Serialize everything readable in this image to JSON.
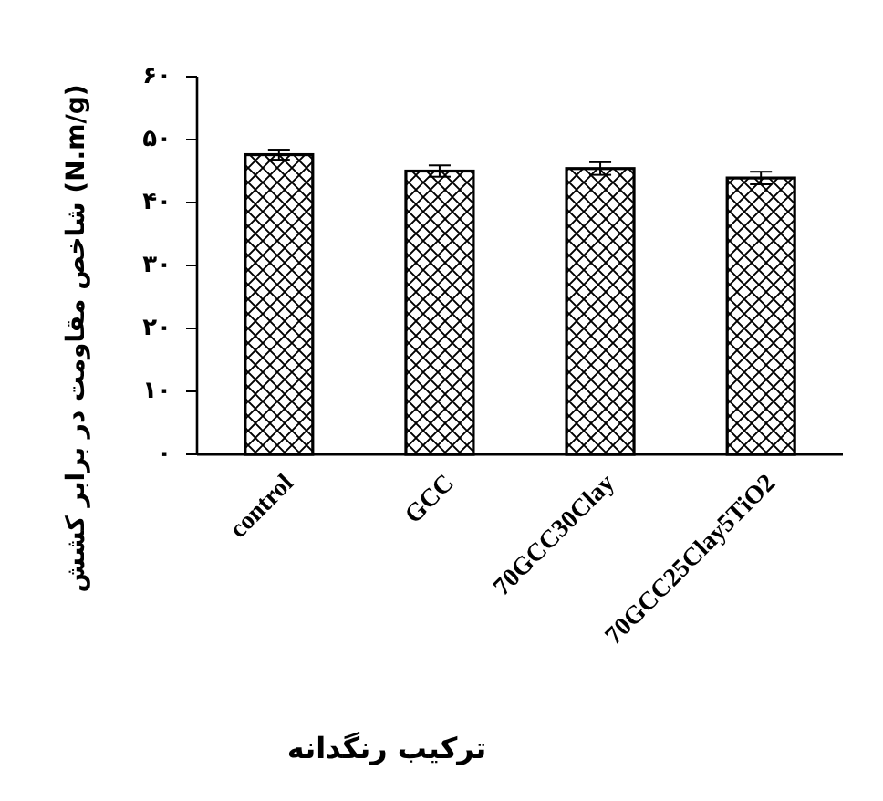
{
  "chart_data": {
    "type": "bar",
    "xlabel": "ترکیب رنگدانه",
    "ylabel": "شاخص مقاومت در برابر کشش (N.m/g)",
    "categories": [
      "control",
      "GCC",
      "70GCC30Clay",
      "70GCC25Clay5TiO2"
    ],
    "values": [
      47.6,
      45.0,
      45.4,
      43.9
    ],
    "errors": [
      0.8,
      0.9,
      1.0,
      1.0
    ],
    "color": "#000000",
    "ylim": [
      0,
      60
    ],
    "yticks": [
      {
        "value": 0,
        "label": "۰"
      },
      {
        "value": 10,
        "label": "۱۰"
      },
      {
        "value": 20,
        "label": "۲۰"
      },
      {
        "value": 30,
        "label": "۳۰"
      },
      {
        "value": 40,
        "label": "۴۰"
      },
      {
        "value": 50,
        "label": "۵۰"
      },
      {
        "value": 60,
        "label": "۶۰"
      }
    ],
    "grid": false
  }
}
